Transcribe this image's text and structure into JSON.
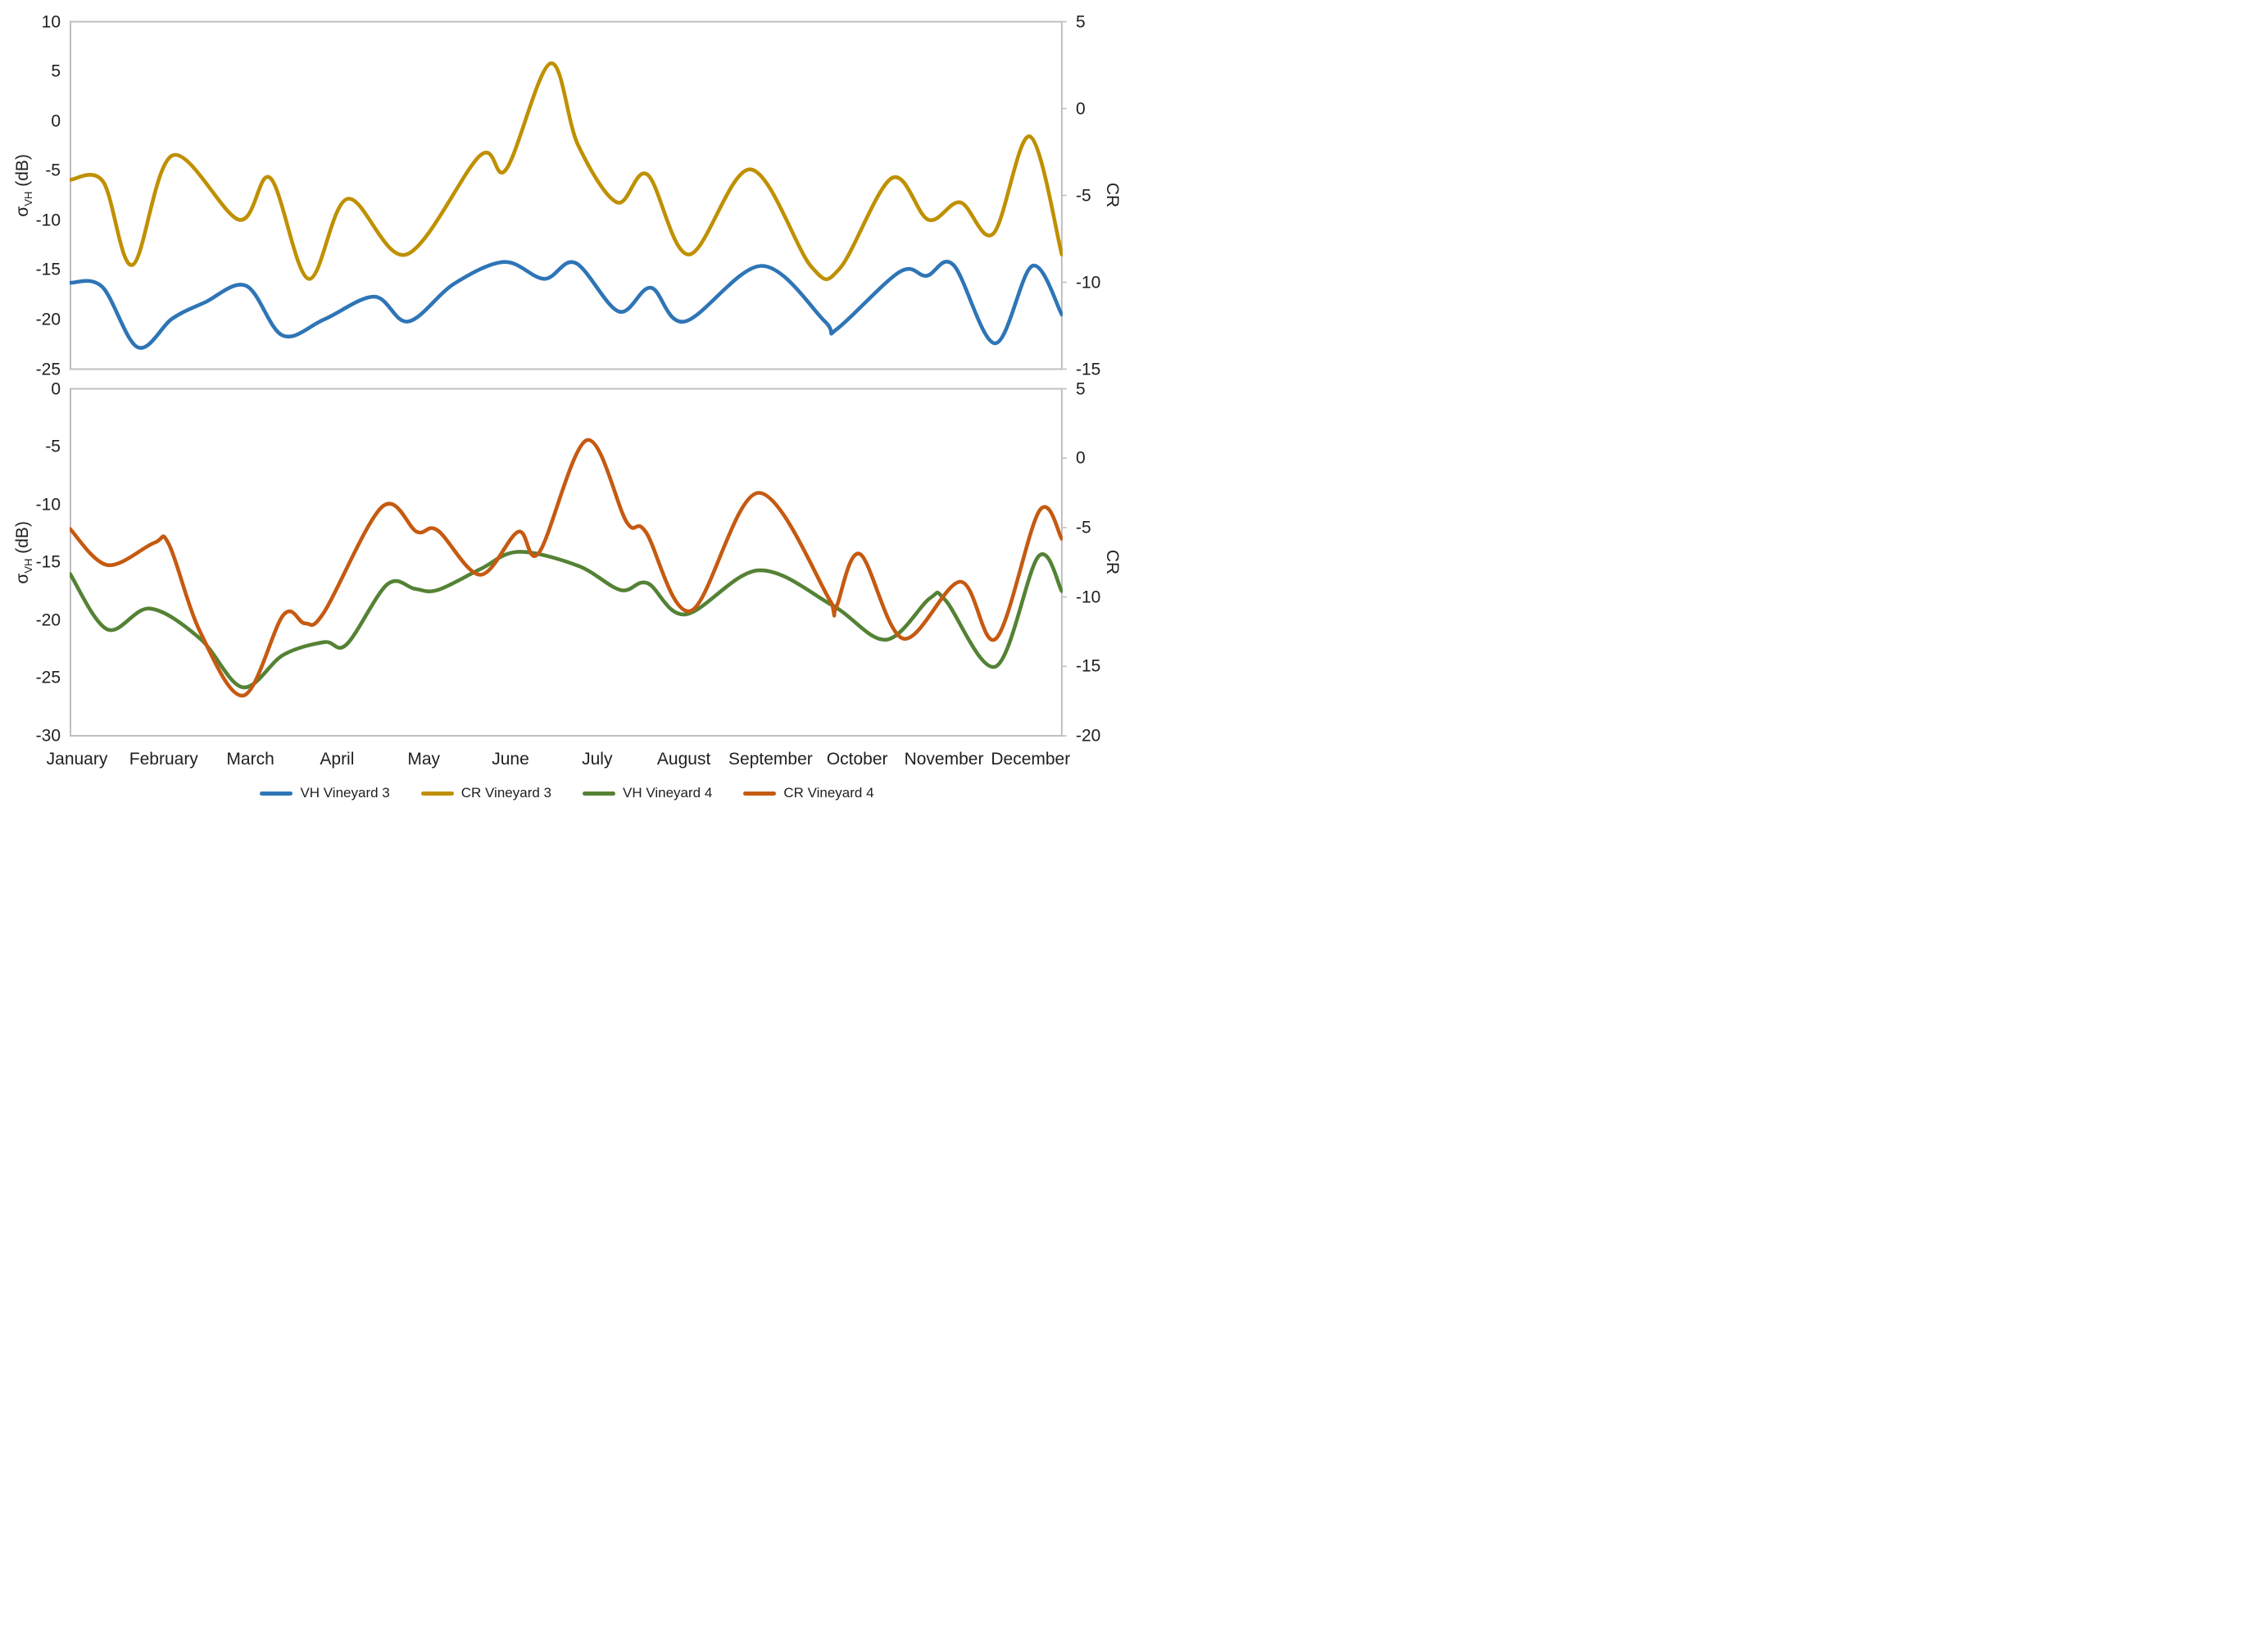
{
  "figure": {
    "axis_titles": {
      "sigma": "σ",
      "sigma_sub": "VH",
      "sigma_unit": " (dB)",
      "right": "CR"
    },
    "colors": {
      "vh_vineyard_3": "#2E75B6",
      "cr_vineyard_3": "#BF9000",
      "vh_vineyard_4": "#548235",
      "cr_vineyard_4": "#C55A11",
      "plot_border": "#BFBFBF",
      "text": "#1F1F1F"
    },
    "legend": [
      {
        "label": "VH Vineyard 3",
        "color": "#2E75B6"
      },
      {
        "label": "CR Vineyard 3",
        "color": "#BF9000"
      },
      {
        "label": "VH Vineyard 4",
        "color": "#548235"
      },
      {
        "label": "CR Vineyard 4",
        "color": "#C55A11"
      }
    ]
  },
  "chart_data": [
    {
      "type": "line",
      "panel": "top",
      "smoothed": true,
      "grid": false,
      "legend_position": "bottom",
      "x_categories": [
        "January",
        "February",
        "March",
        "April",
        "May",
        "June",
        "July",
        "August",
        "September",
        "October",
        "November",
        "December"
      ],
      "left_axis": {
        "label": "σVH (dB)",
        "ticks": [
          10,
          5,
          0,
          -5,
          -10,
          -15,
          -20,
          -25
        ],
        "range": [
          10,
          -25
        ]
      },
      "right_axis": {
        "label": "CR",
        "ticks": [
          5,
          0,
          -5,
          -10,
          -15
        ],
        "range": [
          5,
          -15
        ]
      },
      "series": [
        {
          "name": "VH Vineyard 3",
          "axis": "left",
          "color": "#2E75B6",
          "points": [
            [
              -0.08,
              -16.3
            ],
            [
              0.29,
              -16.7
            ],
            [
              0.7,
              -22.8
            ],
            [
              1.1,
              -19.9
            ],
            [
              1.47,
              -18.3
            ],
            [
              1.95,
              -16.6
            ],
            [
              2.37,
              -21.6
            ],
            [
              2.85,
              -20
            ],
            [
              3.43,
              -17.7
            ],
            [
              3.82,
              -20.2
            ],
            [
              4.35,
              -16.4
            ],
            [
              4.93,
              -14.2
            ],
            [
              5.39,
              -15.9
            ],
            [
              5.75,
              -14.3
            ],
            [
              6.25,
              -19.2
            ],
            [
              6.62,
              -16.8
            ],
            [
              7.01,
              -20.2
            ],
            [
              7.9,
              -14.6
            ],
            [
              8.64,
              -20.3
            ],
            [
              8.76,
              -21
            ],
            [
              9.49,
              -15.2
            ],
            [
              9.8,
              -15.6
            ],
            [
              10.11,
              -14.5
            ],
            [
              10.59,
              -22.4
            ],
            [
              11.02,
              -14.6
            ],
            [
              11.36,
              -19.5
            ]
          ]
        },
        {
          "name": "CR Vineyard 3",
          "axis": "right",
          "color": "#BF9000",
          "points": [
            [
              -0.08,
              -4.1
            ],
            [
              0.3,
              -4.2
            ],
            [
              0.64,
              -9
            ],
            [
              1.1,
              -2.7
            ],
            [
              1.87,
              -6.4
            ],
            [
              2.23,
              -4
            ],
            [
              2.67,
              -9.8
            ],
            [
              3.12,
              -5.2
            ],
            [
              3.8,
              -8.4
            ],
            [
              4.65,
              -2.7
            ],
            [
              4.95,
              -3.5
            ],
            [
              5.46,
              2.6
            ],
            [
              5.78,
              -2.1
            ],
            [
              6.23,
              -5.4
            ],
            [
              6.58,
              -3.8
            ],
            [
              7.06,
              -8.4
            ],
            [
              7.77,
              -3.5
            ],
            [
              8.47,
              -9.1
            ],
            [
              8.8,
              -9.2
            ],
            [
              9.4,
              -4
            ],
            [
              9.82,
              -6.4
            ],
            [
              10.19,
              -5.4
            ],
            [
              10.57,
              -7.2
            ],
            [
              10.99,
              -1.6
            ],
            [
              11.36,
              -8.4
            ]
          ]
        }
      ]
    },
    {
      "type": "line",
      "panel": "bottom",
      "smoothed": true,
      "grid": false,
      "legend_position": "bottom",
      "x_categories": [
        "January",
        "February",
        "March",
        "April",
        "May",
        "June",
        "July",
        "August",
        "September",
        "October",
        "November",
        "December"
      ],
      "left_axis": {
        "label": "σVH (dB)",
        "ticks": [
          0,
          -5,
          -10,
          -15,
          -20,
          -25,
          -30
        ],
        "range": [
          0,
          -30
        ]
      },
      "right_axis": {
        "label": "CR",
        "ticks": [
          5,
          0,
          -5,
          -10,
          -15,
          -20
        ],
        "range": [
          5,
          -20
        ]
      },
      "series": [
        {
          "name": "VH Vineyard 4",
          "axis": "left",
          "color": "#548235",
          "points": [
            [
              -0.08,
              -16
            ],
            [
              0.35,
              -20.8
            ],
            [
              0.84,
              -19
            ],
            [
              1.42,
              -21.6
            ],
            [
              1.91,
              -25.8
            ],
            [
              2.38,
              -23
            ],
            [
              2.85,
              -21.9
            ],
            [
              3.11,
              -22.1
            ],
            [
              3.58,
              -16.9
            ],
            [
              3.9,
              -17.3
            ],
            [
              4.16,
              -17.4
            ],
            [
              4.65,
              -15.6
            ],
            [
              5.09,
              -14.1
            ],
            [
              5.78,
              -15.3
            ],
            [
              6.27,
              -17.4
            ],
            [
              6.58,
              -16.8
            ],
            [
              7.02,
              -19.5
            ],
            [
              7.86,
              -15.7
            ],
            [
              8.71,
              -18.7
            ],
            [
              9.33,
              -21.7
            ],
            [
              9.84,
              -18.1
            ],
            [
              10.02,
              -18.3
            ],
            [
              10.6,
              -24
            ],
            [
              11.09,
              -14.5
            ],
            [
              11.36,
              -17.5
            ]
          ]
        },
        {
          "name": "CR Vineyard 4",
          "axis": "right",
          "color": "#C55A11",
          "points": [
            [
              -0.08,
              -5.1
            ],
            [
              0.35,
              -7.7
            ],
            [
              0.89,
              -6.1
            ],
            [
              1.06,
              -6.2
            ],
            [
              1.42,
              -12.5
            ],
            [
              1.92,
              -17.1
            ],
            [
              2.38,
              -11.3
            ],
            [
              2.63,
              -11.9
            ],
            [
              2.85,
              -11.1
            ],
            [
              3.52,
              -3.5
            ],
            [
              3.92,
              -5.3
            ],
            [
              4.16,
              -5.2
            ],
            [
              4.65,
              -8.4
            ],
            [
              5.09,
              -5.3
            ],
            [
              5.33,
              -6.8
            ],
            [
              5.88,
              1.3
            ],
            [
              6.34,
              -4.6
            ],
            [
              6.56,
              -5.3
            ],
            [
              7.08,
              -11
            ],
            [
              7.86,
              -2.5
            ],
            [
              8.71,
              -10.5
            ],
            [
              8.76,
              -10.7
            ],
            [
              9.03,
              -6.9
            ],
            [
              9.53,
              -13
            ],
            [
              10.19,
              -8.9
            ],
            [
              10.6,
              -13
            ],
            [
              11.1,
              -3.8
            ],
            [
              11.36,
              -5.8
            ]
          ]
        }
      ]
    }
  ]
}
